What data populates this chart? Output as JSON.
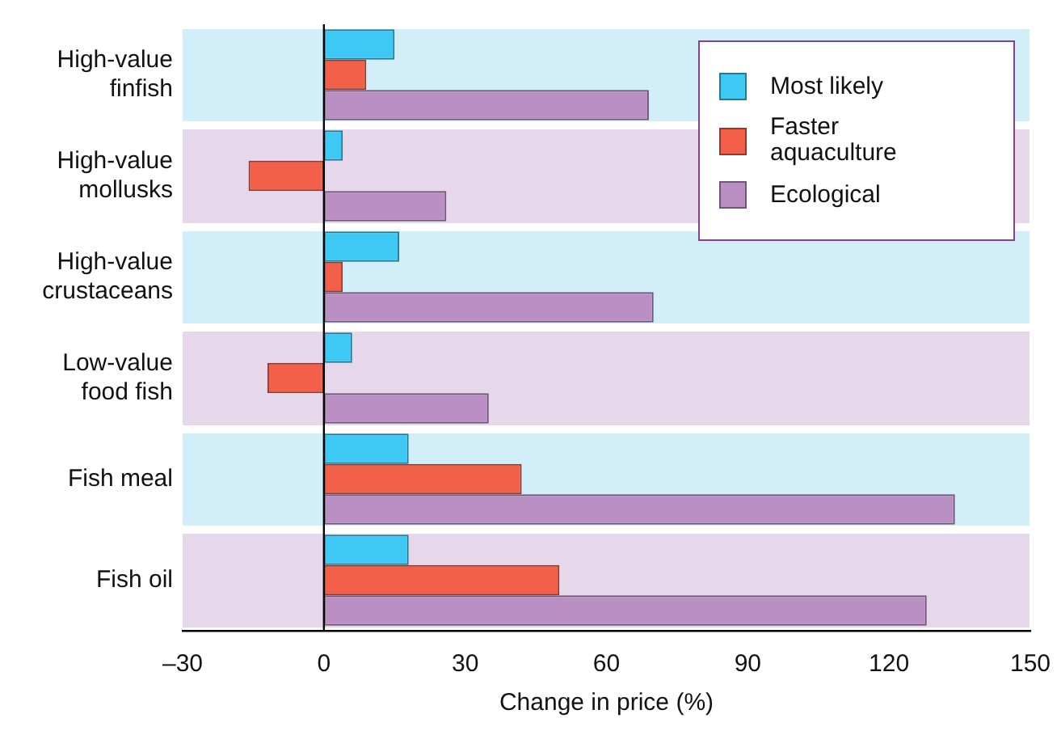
{
  "chart_data": {
    "type": "bar",
    "orientation": "horizontal",
    "xlabel": "Change in price (%)",
    "categories": [
      "High-value finfish",
      "High-value mollusks",
      "High-value crustaceans",
      "Low-value food fish",
      "Fish meal",
      "Fish oil"
    ],
    "series": [
      {
        "name": "Most likely",
        "color": "#3ec9f5",
        "values": [
          15,
          4,
          16,
          6,
          18,
          18
        ]
      },
      {
        "name": "Faster aquaculture",
        "color": "#f2604a",
        "values": [
          9,
          -16,
          4,
          -12,
          42,
          50
        ]
      },
      {
        "name": "Ecological",
        "color": "#b98fc4",
        "values": [
          69,
          26,
          70,
          35,
          134,
          128
        ]
      }
    ],
    "xlim": [
      -30,
      150
    ],
    "xticks": [
      {
        "value": -30,
        "label": "–30"
      },
      0,
      30,
      60,
      90,
      120,
      150
    ],
    "ref_lines": [
      {
        "axis": "x",
        "value": 0,
        "color": "#000000"
      }
    ],
    "grid": false,
    "legend": "top right"
  }
}
